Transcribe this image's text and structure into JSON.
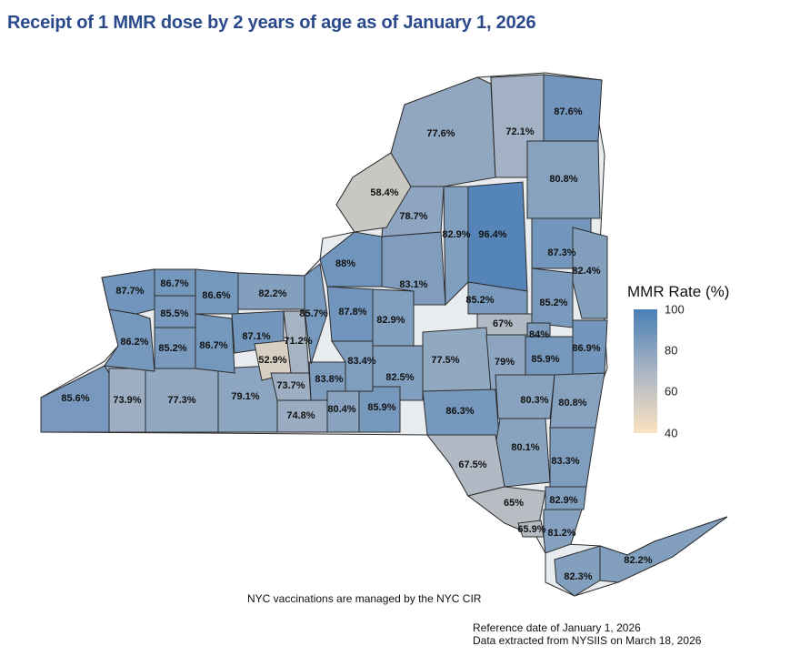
{
  "title": "Receipt of 1 MMR dose by 2 years of age as of January 1, 2026",
  "legend": {
    "title": "MMR Rate (%)",
    "ticks": [
      "100",
      "80",
      "60",
      "40"
    ],
    "scale_min": 40,
    "scale_max": 100,
    "color_low": "#fae3c0",
    "color_mid": "#a9b5c4",
    "color_high": "#4a7fb6"
  },
  "colors": {
    "low": "#e7dccb",
    "mid_low": "#c8cbd0",
    "mid": "#a9b5c4",
    "high": "#7a9ac0",
    "very_high": "#5b8bc2"
  },
  "counties": [
    {
      "id": "chautauqua",
      "label": "85.6%",
      "value": 85.6
    },
    {
      "id": "cattaraugus",
      "label": "73.9%",
      "value": 73.9
    },
    {
      "id": "allegany",
      "label": "77.3%",
      "value": 77.3
    },
    {
      "id": "steuben",
      "label": "79.1%",
      "value": 79.1
    },
    {
      "id": "erie",
      "label": "86.2%",
      "value": 86.2
    },
    {
      "id": "niagara",
      "label": "87.7%",
      "value": 87.7
    },
    {
      "id": "orleans",
      "label": "86.7%",
      "value": 86.7
    },
    {
      "id": "genesee",
      "label": "85.5%",
      "value": 85.5
    },
    {
      "id": "wyoming",
      "label": "85.2%",
      "value": 85.2
    },
    {
      "id": "monroe",
      "label": "86.6%",
      "value": 86.6
    },
    {
      "id": "livingston",
      "label": "86.7%",
      "value": 86.7
    },
    {
      "id": "wayne",
      "label": "82.2%",
      "value": 82.2
    },
    {
      "id": "ontario",
      "label": "87.1%",
      "value": 87.1
    },
    {
      "id": "yates",
      "label": "52.9%",
      "value": 52.9
    },
    {
      "id": "seneca",
      "label": "71.2%",
      "value": 71.2
    },
    {
      "id": "schuyler",
      "label": "73.7%",
      "value": 73.7
    },
    {
      "id": "chemung",
      "label": "74.8%",
      "value": 74.8
    },
    {
      "id": "tompkins",
      "label": "83.8%",
      "value": 83.8
    },
    {
      "id": "tioga",
      "label": "80.4%",
      "value": 80.4
    },
    {
      "id": "broome",
      "label": "85.9%",
      "value": 85.9
    },
    {
      "id": "cayuga",
      "label": "85.7%",
      "value": 85.7
    },
    {
      "id": "onondaga",
      "label": "87.8%",
      "value": 87.8
    },
    {
      "id": "oswego",
      "label": "88%",
      "value": 88.0
    },
    {
      "id": "cortland",
      "label": "83.4%",
      "value": 83.4
    },
    {
      "id": "madison",
      "label": "82.9%",
      "value": 82.9
    },
    {
      "id": "chenango",
      "label": "82.5%",
      "value": 82.5
    },
    {
      "id": "oneida",
      "label": "83.1%",
      "value": 83.1
    },
    {
      "id": "lewis",
      "label": "78.7%",
      "value": 78.7
    },
    {
      "id": "jefferson",
      "label": "58.4%",
      "value": 58.4
    },
    {
      "id": "st_lawrence",
      "label": "77.6%",
      "value": 77.6
    },
    {
      "id": "franklin",
      "label": "72.1%",
      "value": 72.1
    },
    {
      "id": "clinton",
      "label": "87.6%",
      "value": 87.6
    },
    {
      "id": "essex",
      "label": "80.8%",
      "value": 80.8
    },
    {
      "id": "hamilton",
      "label": "96.4%",
      "value": 96.4
    },
    {
      "id": "herkimer",
      "label": "82.9%",
      "value": 82.9
    },
    {
      "id": "warren",
      "label": "87.3%",
      "value": 87.3
    },
    {
      "id": "washington",
      "label": "82.4%",
      "value": 82.4
    },
    {
      "id": "fulton",
      "label": "85.2%",
      "value": 85.2
    },
    {
      "id": "saratoga",
      "label": "85.2%",
      "value": 85.2
    },
    {
      "id": "montgomery",
      "label": "67%",
      "value": 67.0
    },
    {
      "id": "schenectady",
      "label": "84%",
      "value": 84.0
    },
    {
      "id": "otsego",
      "label": "77.5%",
      "value": 77.5
    },
    {
      "id": "schoharie",
      "label": "79%",
      "value": 79.0
    },
    {
      "id": "albany",
      "label": "85.9%",
      "value": 85.9
    },
    {
      "id": "rensselaer",
      "label": "86.9%",
      "value": 86.9
    },
    {
      "id": "delaware",
      "label": "86.3%",
      "value": 86.3
    },
    {
      "id": "greene",
      "label": "80.3%",
      "value": 80.3
    },
    {
      "id": "columbia",
      "label": "80.8%",
      "value": 80.8
    },
    {
      "id": "ulster",
      "label": "80.1%",
      "value": 80.1
    },
    {
      "id": "sullivan",
      "label": "67.5%",
      "value": 67.5
    },
    {
      "id": "dutchess",
      "label": "83.3%",
      "value": 83.3
    },
    {
      "id": "orange",
      "label": "65%",
      "value": 65.0
    },
    {
      "id": "putnam",
      "label": "82.9%",
      "value": 82.9
    },
    {
      "id": "rockland",
      "label": "65.9%",
      "value": 65.9
    },
    {
      "id": "westchester",
      "label": "81.2%",
      "value": 81.2
    },
    {
      "id": "suffolk",
      "label": "82.2%",
      "value": 82.2
    },
    {
      "id": "nassau",
      "label": "82.3%",
      "value": 82.3
    }
  ],
  "note": "NYC vaccinations are managed by the NYC CIR",
  "footer": {
    "line1": "Reference date of January 1, 2026",
    "line2": "Data extracted from NYSIIS on March 18, 2026"
  }
}
